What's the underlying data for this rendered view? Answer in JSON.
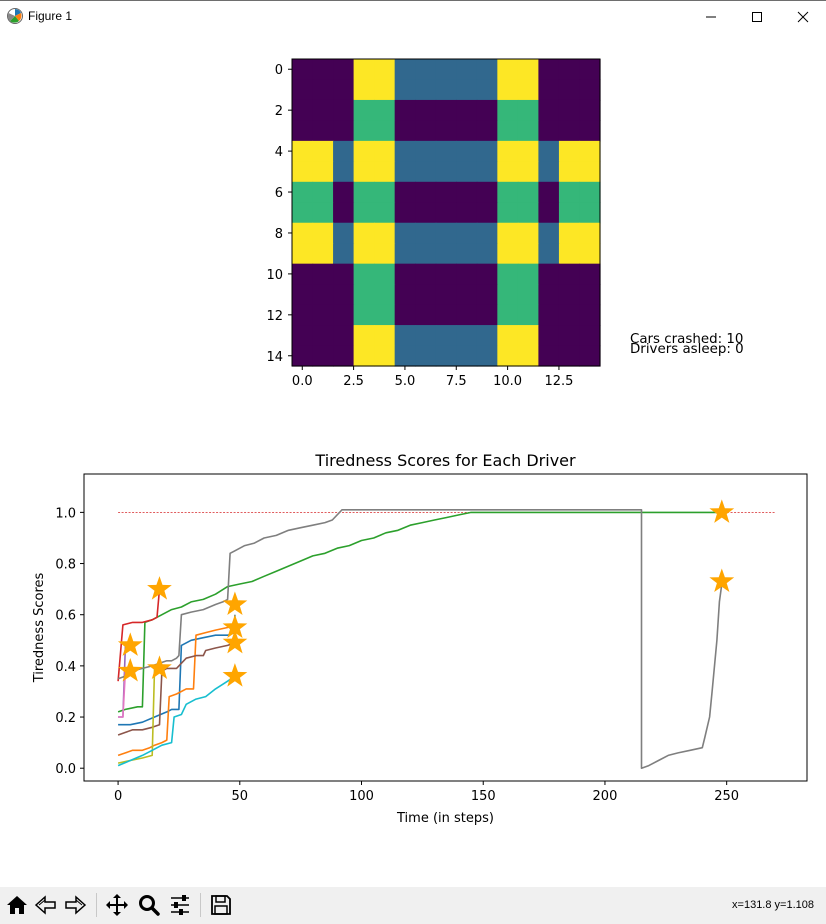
{
  "window": {
    "title": "Figure 1",
    "minimize_icon": "minimize-icon",
    "maximize_icon": "maximize-icon",
    "close_icon": "close-icon"
  },
  "status": {
    "cars_crashed": "Cars crashed: 10",
    "drivers_asleep": "Drivers asleep: 0"
  },
  "toolbar": {
    "buttons": [
      "home-icon",
      "back-icon",
      "forward-icon",
      "pan-icon",
      "zoom-icon",
      "configure-subplots-icon",
      "save-icon"
    ],
    "coords": "x=131.8 y=1.108"
  },
  "chart_data": [
    {
      "type": "heatmap",
      "colormap": "viridis",
      "x_ticks": [
        "0.0",
        "2.5",
        "5.0",
        "7.5",
        "10.0",
        "12.5"
      ],
      "y_ticks": [
        "0",
        "2",
        "4",
        "6",
        "8",
        "10",
        "12",
        "14"
      ],
      "rows": 15,
      "cols": 15,
      "grid": [
        [
          0,
          0,
          0,
          3,
          3,
          1,
          1,
          1,
          1,
          1,
          3,
          3,
          0,
          0,
          0
        ],
        [
          0,
          0,
          0,
          3,
          3,
          1,
          1,
          1,
          1,
          1,
          3,
          3,
          0,
          0,
          0
        ],
        [
          0,
          0,
          0,
          2,
          2,
          0,
          0,
          0,
          0,
          0,
          2,
          2,
          0,
          0,
          0
        ],
        [
          0,
          0,
          0,
          2,
          2,
          0,
          0,
          0,
          0,
          0,
          2,
          2,
          0,
          0,
          0
        ],
        [
          3,
          3,
          1,
          3,
          3,
          1,
          1,
          1,
          1,
          1,
          3,
          3,
          1,
          3,
          3
        ],
        [
          3,
          3,
          1,
          3,
          3,
          1,
          1,
          1,
          1,
          1,
          3,
          3,
          1,
          3,
          3
        ],
        [
          2,
          2,
          0,
          2,
          2,
          0,
          0,
          0,
          0,
          0,
          2,
          2,
          0,
          2,
          2
        ],
        [
          2,
          2,
          0,
          2,
          2,
          0,
          0,
          0,
          0,
          0,
          2,
          2,
          0,
          2,
          2
        ],
        [
          3,
          3,
          1,
          3,
          3,
          1,
          1,
          1,
          1,
          1,
          3,
          3,
          1,
          3,
          3
        ],
        [
          3,
          3,
          1,
          3,
          3,
          1,
          1,
          1,
          1,
          1,
          3,
          3,
          1,
          3,
          3
        ],
        [
          0,
          0,
          0,
          2,
          2,
          0,
          0,
          0,
          0,
          0,
          2,
          2,
          0,
          0,
          0
        ],
        [
          0,
          0,
          0,
          2,
          2,
          0,
          0,
          0,
          0,
          0,
          2,
          2,
          0,
          0,
          0
        ],
        [
          0,
          0,
          0,
          2,
          2,
          0,
          0,
          0,
          0,
          0,
          2,
          2,
          0,
          0,
          0
        ],
        [
          0,
          0,
          0,
          3,
          3,
          1,
          1,
          1,
          1,
          1,
          3,
          3,
          0,
          0,
          0
        ],
        [
          0,
          0,
          0,
          3,
          3,
          1,
          1,
          1,
          1,
          1,
          3,
          3,
          0,
          0,
          0
        ]
      ],
      "palette": [
        "#440154",
        "#31688e",
        "#35b779",
        "#fde725"
      ]
    },
    {
      "type": "line",
      "title": "Tiredness Scores for Each Driver",
      "xlabel": "Time (in steps)",
      "ylabel": "Tiredness Scores",
      "xlim": [
        -14,
        283
      ],
      "ylim": [
        -0.05,
        1.15
      ],
      "x_ticks": [
        "0",
        "50",
        "100",
        "150",
        "200",
        "250"
      ],
      "y_ticks": [
        "0.0",
        "0.2",
        "0.4",
        "0.6",
        "0.8",
        "1.0"
      ],
      "threshold": {
        "y": 1.0,
        "x": [
          0,
          270
        ],
        "color": "#d62728",
        "style": "dashed"
      },
      "series": [
        {
          "color": "#1f77b4",
          "points": [
            [
              0,
              0.17
            ],
            [
              5,
              0.17
            ],
            [
              10,
              0.18
            ],
            [
              15,
              0.2
            ],
            [
              20,
              0.22
            ],
            [
              22,
              0.23
            ],
            [
              25,
              0.23
            ],
            [
              26,
              0.48
            ],
            [
              30,
              0.5
            ],
            [
              35,
              0.51
            ],
            [
              40,
              0.52
            ],
            [
              45,
              0.52
            ],
            [
              48,
              0.53
            ],
            [
              48,
              0.6
            ]
          ]
        },
        {
          "color": "#ff7f0e",
          "points": [
            [
              0,
              0.05
            ],
            [
              3,
              0.06
            ],
            [
              6,
              0.07
            ],
            [
              10,
              0.07
            ],
            [
              13,
              0.08
            ],
            [
              15,
              0.09
            ],
            [
              18,
              0.1
            ],
            [
              20,
              0.11
            ],
            [
              21,
              0.28
            ],
            [
              24,
              0.29
            ],
            [
              28,
              0.31
            ],
            [
              31,
              0.31
            ],
            [
              32,
              0.52
            ],
            [
              36,
              0.53
            ],
            [
              40,
              0.54
            ],
            [
              45,
              0.55
            ],
            [
              48,
              0.56
            ]
          ]
        },
        {
          "color": "#2ca02c",
          "points": [
            [
              0,
              0.22
            ],
            [
              3,
              0.23
            ],
            [
              8,
              0.24
            ],
            [
              10,
              0.24
            ],
            [
              11,
              0.57
            ],
            [
              14,
              0.58
            ],
            [
              18,
              0.6
            ],
            [
              22,
              0.62
            ],
            [
              26,
              0.63
            ],
            [
              30,
              0.65
            ],
            [
              35,
              0.66
            ],
            [
              40,
              0.68
            ],
            [
              45,
              0.71
            ],
            [
              50,
              0.72
            ],
            [
              55,
              0.73
            ],
            [
              60,
              0.75
            ],
            [
              65,
              0.77
            ],
            [
              70,
              0.79
            ],
            [
              75,
              0.81
            ],
            [
              80,
              0.83
            ],
            [
              85,
              0.84
            ],
            [
              90,
              0.86
            ],
            [
              95,
              0.87
            ],
            [
              100,
              0.89
            ],
            [
              105,
              0.9
            ],
            [
              110,
              0.92
            ],
            [
              115,
              0.93
            ],
            [
              120,
              0.95
            ],
            [
              125,
              0.96
            ],
            [
              130,
              0.97
            ],
            [
              135,
              0.98
            ],
            [
              140,
              0.99
            ],
            [
              145,
              1.0
            ],
            [
              248,
              1.0
            ]
          ]
        },
        {
          "color": "#d62728",
          "points": [
            [
              0,
              0.34
            ],
            [
              2,
              0.56
            ],
            [
              6,
              0.57
            ],
            [
              10,
              0.57
            ],
            [
              14,
              0.58
            ],
            [
              16,
              0.59
            ],
            [
              17,
              0.7
            ]
          ]
        },
        {
          "color": "#9467bd",
          "points": [
            [
              0,
              0.2
            ],
            [
              2,
              0.2
            ],
            [
              3,
              0.48
            ]
          ]
        },
        {
          "color": "#8c564b",
          "points": [
            [
              0,
              0.13
            ],
            [
              3,
              0.14
            ],
            [
              6,
              0.15
            ],
            [
              10,
              0.15
            ],
            [
              14,
              0.16
            ],
            [
              17,
              0.17
            ],
            [
              18,
              0.38
            ],
            [
              20,
              0.39
            ],
            [
              24,
              0.39
            ],
            [
              28,
              0.43
            ],
            [
              32,
              0.44
            ],
            [
              35,
              0.44
            ],
            [
              36,
              0.46
            ],
            [
              40,
              0.47
            ],
            [
              45,
              0.48
            ],
            [
              48,
              0.49
            ]
          ]
        },
        {
          "color": "#e377c2",
          "points": [
            [
              0,
              0.2
            ],
            [
              2,
              0.2
            ],
            [
              3,
              0.38
            ],
            [
              5,
              0.38
            ]
          ]
        },
        {
          "color": "#7f7f7f",
          "points": [
            [
              0,
              0.35
            ],
            [
              3,
              0.36
            ],
            [
              6,
              0.38
            ],
            [
              10,
              0.39
            ],
            [
              14,
              0.4
            ],
            [
              17,
              0.41
            ],
            [
              20,
              0.42
            ],
            [
              22,
              0.42
            ],
            [
              24,
              0.43
            ],
            [
              25,
              0.44
            ],
            [
              26,
              0.6
            ],
            [
              30,
              0.61
            ],
            [
              35,
              0.62
            ],
            [
              40,
              0.64
            ],
            [
              43,
              0.65
            ],
            [
              45,
              0.66
            ],
            [
              46,
              0.84
            ],
            [
              48,
              0.85
            ],
            [
              52,
              0.87
            ],
            [
              56,
              0.88
            ],
            [
              60,
              0.9
            ],
            [
              65,
              0.91
            ],
            [
              70,
              0.93
            ],
            [
              75,
              0.94
            ],
            [
              80,
              0.95
            ],
            [
              85,
              0.96
            ],
            [
              88,
              0.97
            ],
            [
              92,
              1.01
            ],
            [
              215,
              1.01
            ],
            [
              215,
              0.0
            ],
            [
              218,
              0.01
            ],
            [
              222,
              0.03
            ],
            [
              226,
              0.05
            ],
            [
              230,
              0.06
            ],
            [
              235,
              0.07
            ],
            [
              240,
              0.08
            ],
            [
              241,
              0.12
            ],
            [
              243,
              0.2
            ],
            [
              244,
              0.3
            ],
            [
              246,
              0.5
            ],
            [
              247,
              0.65
            ],
            [
              248,
              0.72
            ]
          ]
        },
        {
          "color": "#bcbd22",
          "points": [
            [
              0,
              0.02
            ],
            [
              5,
              0.03
            ],
            [
              10,
              0.04
            ],
            [
              14,
              0.05
            ],
            [
              15,
              0.4
            ]
          ]
        },
        {
          "color": "#17becf",
          "points": [
            [
              0,
              0.01
            ],
            [
              5,
              0.03
            ],
            [
              10,
              0.05
            ],
            [
              14,
              0.07
            ],
            [
              18,
              0.09
            ],
            [
              22,
              0.1
            ],
            [
              23,
              0.2
            ],
            [
              26,
              0.21
            ],
            [
              28,
              0.25
            ],
            [
              32,
              0.27
            ],
            [
              36,
              0.28
            ],
            [
              40,
              0.31
            ],
            [
              45,
              0.34
            ],
            [
              48,
              0.36
            ]
          ]
        }
      ],
      "markers": {
        "color": "#ffa500",
        "shape": "star",
        "points": [
          [
            5,
            0.48
          ],
          [
            5,
            0.38
          ],
          [
            17,
            0.7
          ],
          [
            17,
            0.39
          ],
          [
            48,
            0.64
          ],
          [
            48,
            0.55
          ],
          [
            48,
            0.49
          ],
          [
            48,
            0.36
          ],
          [
            248,
            1.0
          ],
          [
            248,
            0.73
          ]
        ]
      }
    }
  ]
}
